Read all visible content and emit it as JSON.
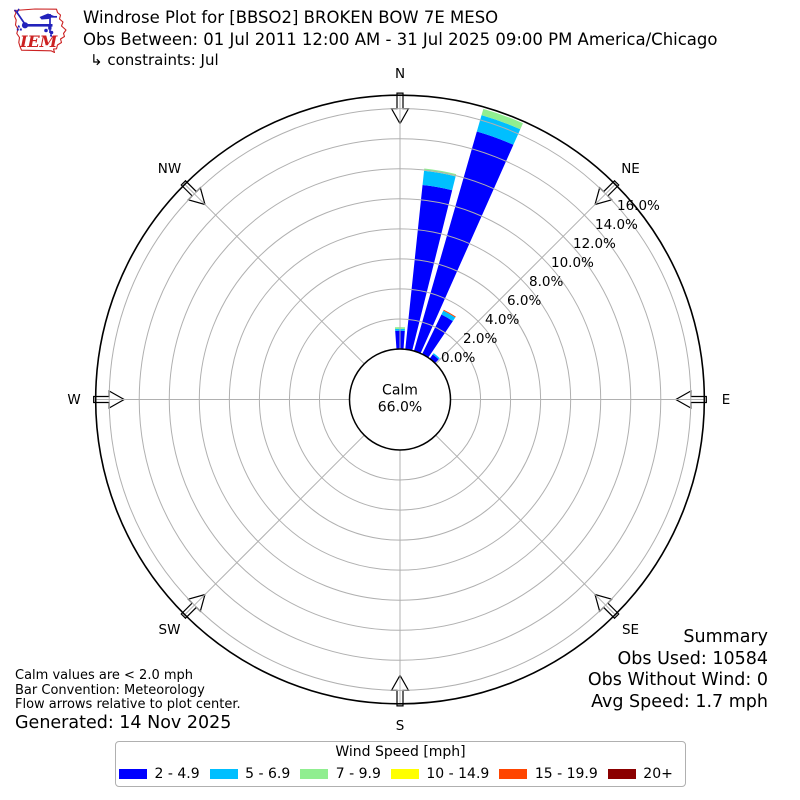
{
  "header": {
    "title": "Windrose Plot for [BBSO2] BROKEN BOW 7E MESO",
    "subtitle": "Obs Between: 01 Jul 2011 12:00 AM - 31 Jul 2025 09:00 PM America/Chicago",
    "constraints": "↳ constraints: Jul",
    "logo_text": "IEM"
  },
  "chart_data": {
    "type": "windrose-polar-bar",
    "units": "mph",
    "calm": {
      "label": "Calm",
      "percent_label": "66.0%",
      "value_percent": 66.0
    },
    "radial_ticks": {
      "unit": "percent",
      "values": [
        0,
        2,
        4,
        6,
        8,
        10,
        12,
        14,
        16
      ],
      "labels": [
        "0.0%",
        "2.0%",
        "4.0%",
        "6.0%",
        "8.0%",
        "10.0%",
        "12.0%",
        "14.0%",
        "16.0%"
      ],
      "rmax_percent": 16.9
    },
    "compass_labels": [
      "N",
      "NE",
      "E",
      "SE",
      "S",
      "SW",
      "W",
      "NW"
    ],
    "compass_angles_deg": [
      0,
      45,
      90,
      135,
      180,
      225,
      270,
      315
    ],
    "speed_bins": [
      {
        "label": "2 - 4.9",
        "color": "#0000ff"
      },
      {
        "label": "5 - 6.9",
        "color": "#00bfff"
      },
      {
        "label": "7 - 9.9",
        "color": "#90ee90"
      },
      {
        "label": "10 - 14.9",
        "color": "#ffff00"
      },
      {
        "label": "15 - 19.9",
        "color": "#ff4500"
      },
      {
        "label": "20+",
        "color": "#8b0000"
      }
    ],
    "bar_width_deg": 8,
    "bars": [
      {
        "direction_deg": 0,
        "segments": [
          {
            "bin": 0,
            "value": 1.22
          },
          {
            "bin": 1,
            "value": 0.12
          },
          {
            "bin": 2,
            "value": 0.12
          }
        ]
      },
      {
        "direction_deg": 10,
        "segments": [
          {
            "bin": 0,
            "value": 11.0
          },
          {
            "bin": 1,
            "value": 0.95
          },
          {
            "bin": 2,
            "value": 0.15
          }
        ]
      },
      {
        "direction_deg": 20,
        "segments": [
          {
            "bin": 0,
            "value": 15.2
          },
          {
            "bin": 1,
            "value": 1.13
          },
          {
            "bin": 2,
            "value": 0.44
          }
        ]
      },
      {
        "direction_deg": 30,
        "segments": [
          {
            "bin": 0,
            "value": 2.93
          },
          {
            "bin": 1,
            "value": 0.29
          },
          {
            "bin": 4,
            "value": 0.07
          }
        ]
      },
      {
        "direction_deg": 40,
        "segments": [
          {
            "bin": 0,
            "value": 0.35
          },
          {
            "bin": 1,
            "value": 0.1
          }
        ]
      }
    ],
    "legend_title": "Wind Speed [mph]"
  },
  "footer_left": {
    "lines": [
      "Calm values are < 2.0 mph",
      "Bar Convention: Meteorology",
      "Flow arrows relative to plot center."
    ],
    "generated": "Generated: 14 Nov 2025"
  },
  "summary": {
    "title": "Summary",
    "obs_used": "Obs Used: 10584",
    "obs_without_wind": "Obs Without Wind: 0",
    "avg_speed": "Avg Speed: 1.7 mph"
  }
}
